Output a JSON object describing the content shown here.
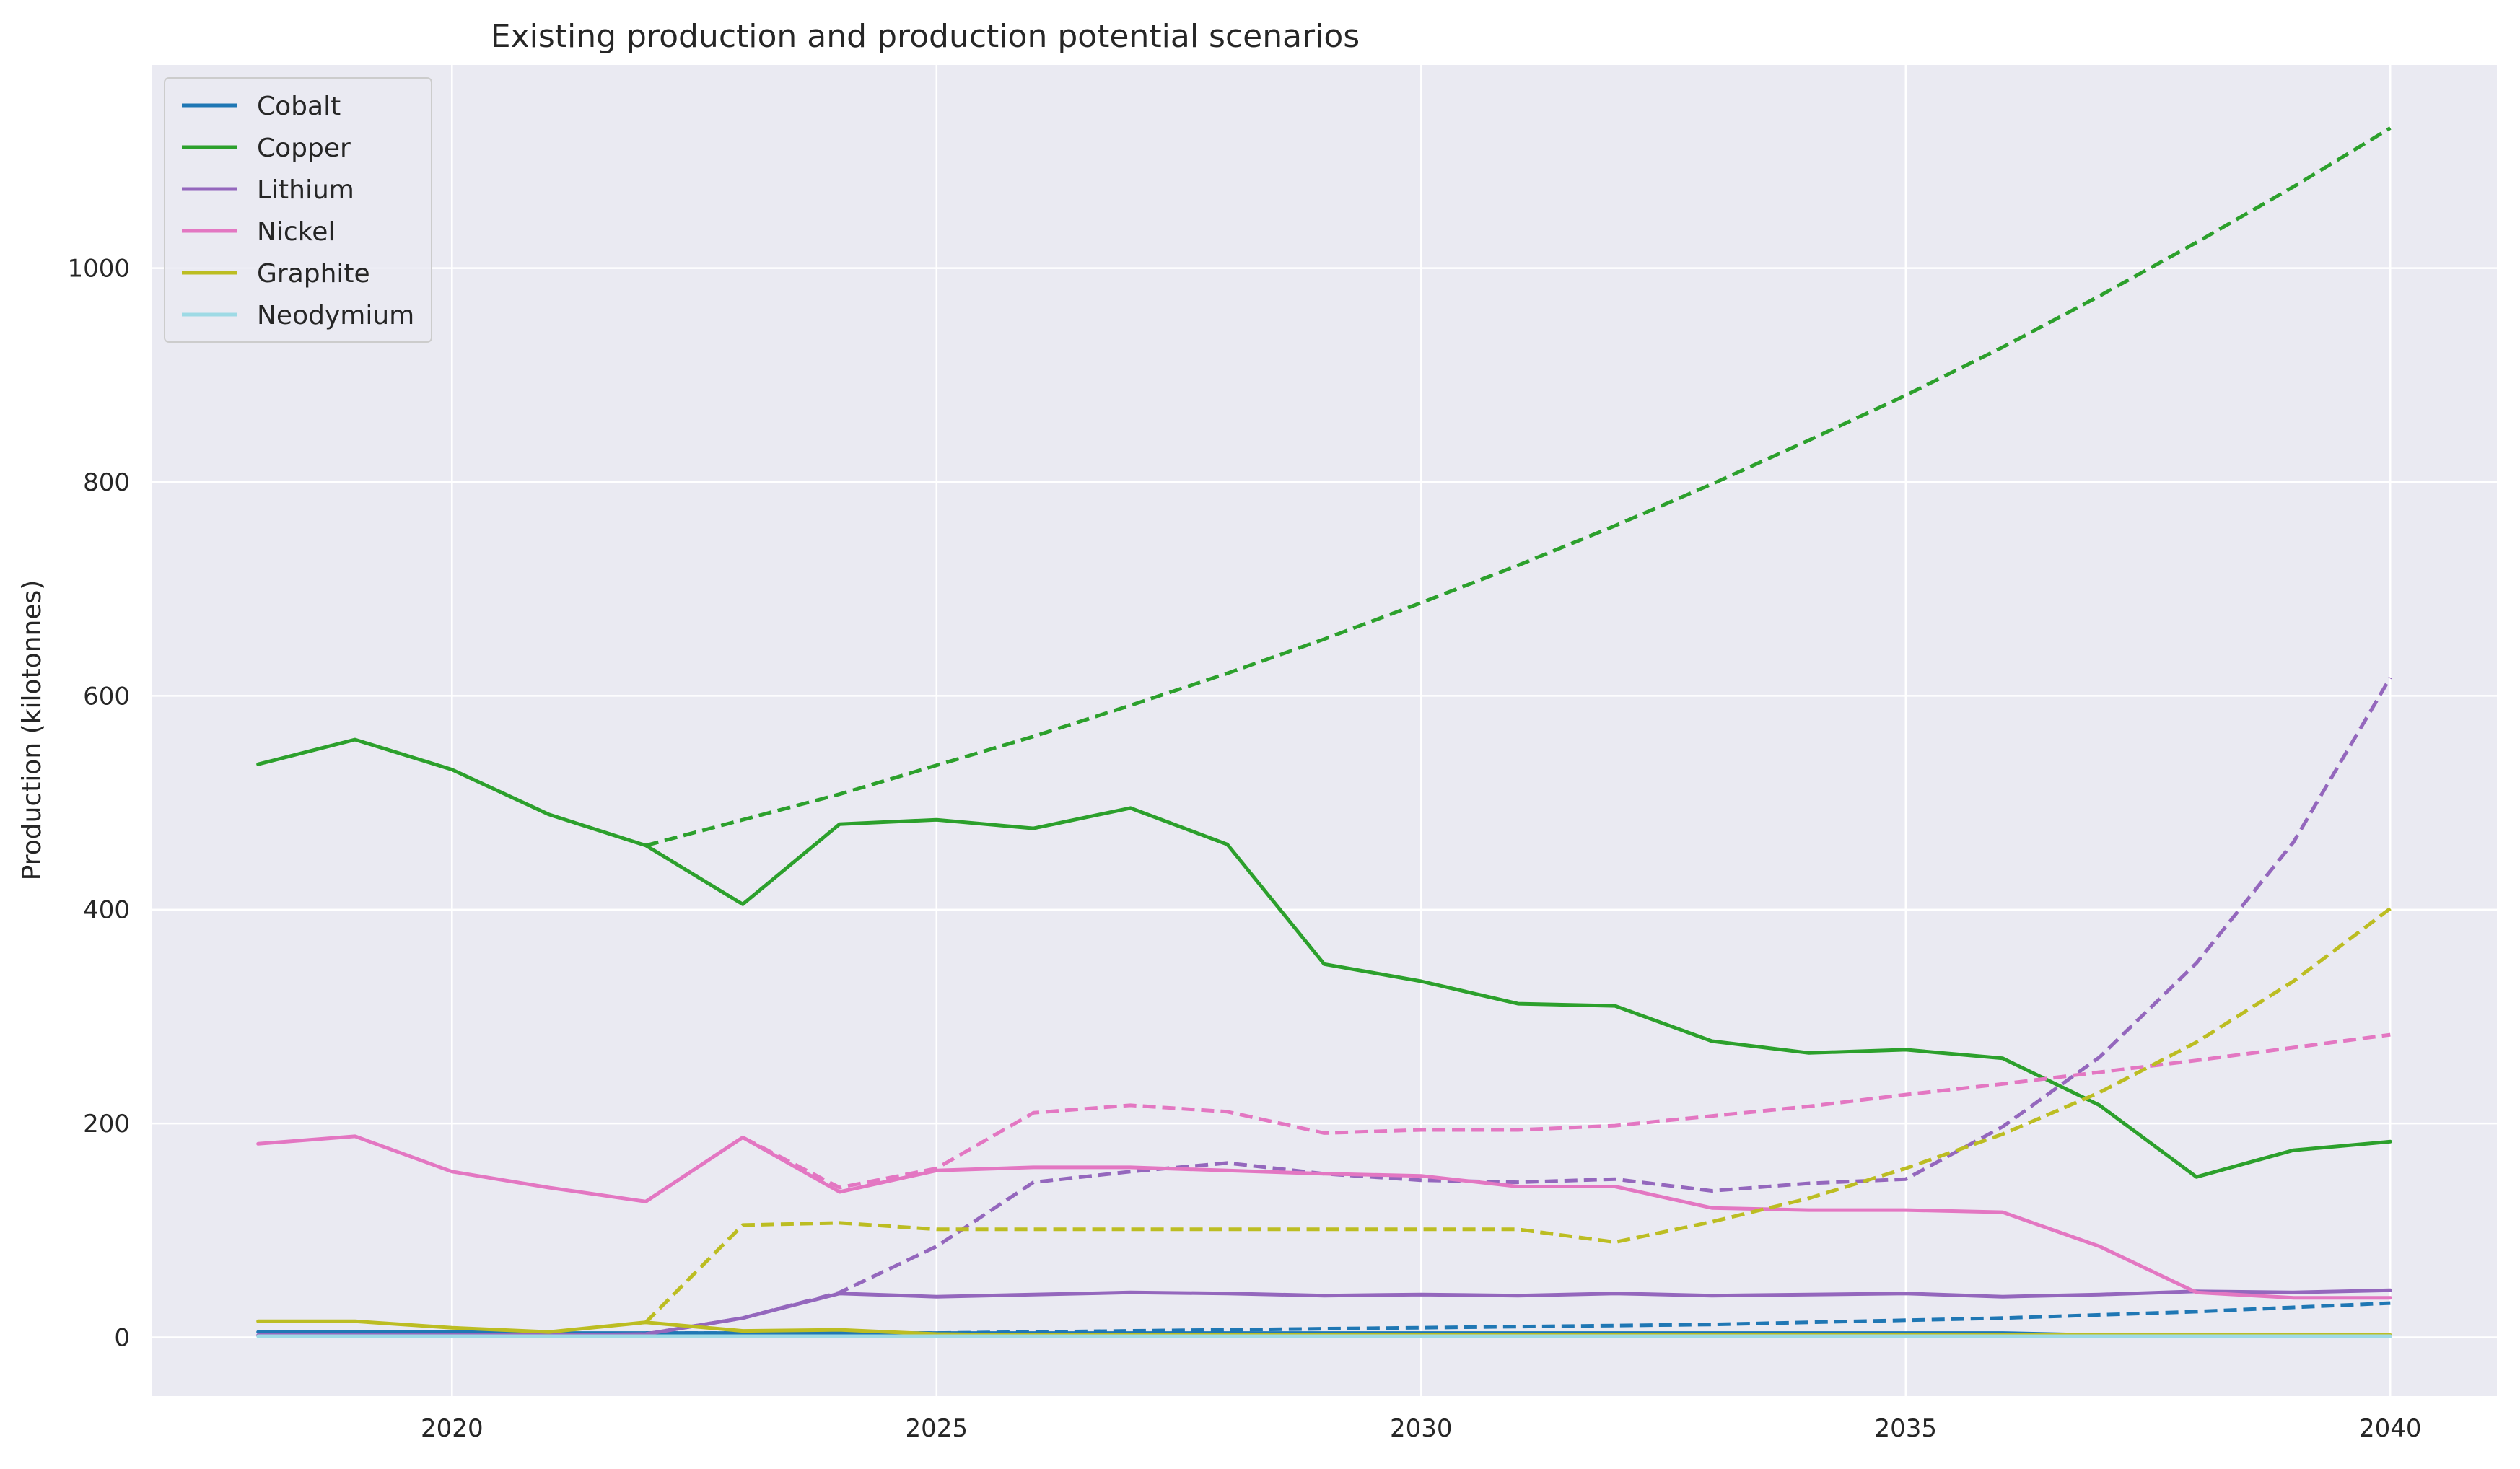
{
  "chart_data": {
    "type": "line",
    "title": "Existing production and production potential scenarios",
    "xlabel": "",
    "ylabel": "Production (kilotonnes)",
    "xlim": [
      2016.9,
      2041.1
    ],
    "ylim": [
      -55,
      1190
    ],
    "xticks": [
      2020,
      2025,
      2030,
      2035,
      2040
    ],
    "yticks": [
      0,
      200,
      400,
      600,
      800,
      1000
    ],
    "grid": true,
    "legend_position": "top-left",
    "line_styles": {
      "solid": "existing production",
      "dashed": "production potential"
    },
    "series": [
      {
        "name": "Cobalt",
        "color": "#1f77b4",
        "existing": {
          "x": [
            2018,
            2019,
            2020,
            2021,
            2022,
            2023,
            2024,
            2025,
            2026,
            2027,
            2028,
            2029,
            2030,
            2031,
            2032,
            2033,
            2034,
            2035,
            2036,
            2037,
            2038,
            2039,
            2040
          ],
          "y": [
            5,
            5,
            5,
            4,
            4,
            4,
            4,
            4,
            4,
            4,
            4,
            4,
            4,
            4,
            4,
            4,
            4,
            4,
            4,
            2,
            1,
            1,
            1
          ]
        },
        "potential": {
          "x": [
            2022,
            2023,
            2024,
            2025,
            2026,
            2027,
            2028,
            2029,
            2030,
            2031,
            2032,
            2033,
            2034,
            2035,
            2036,
            2037,
            2038,
            2039,
            2040
          ],
          "y": [
            4,
            4,
            4,
            4,
            5,
            6,
            7,
            8,
            9,
            10,
            11,
            12,
            14,
            16,
            18,
            21,
            24,
            28,
            32
          ]
        }
      },
      {
        "name": "Copper",
        "color": "#2ca02c",
        "existing": {
          "x": [
            2018,
            2019,
            2020,
            2021,
            2022,
            2023,
            2024,
            2025,
            2026,
            2027,
            2028,
            2029,
            2030,
            2031,
            2032,
            2033,
            2034,
            2035,
            2036,
            2037,
            2038,
            2039,
            2040
          ],
          "y": [
            536,
            559,
            531,
            489,
            460,
            405,
            480,
            484,
            476,
            495,
            461,
            349,
            333,
            312,
            310,
            277,
            266,
            269,
            261,
            217,
            150,
            175,
            183
          ]
        },
        "potential": {
          "x": [
            2022,
            2023,
            2024,
            2025,
            2026,
            2027,
            2028,
            2029,
            2030,
            2031,
            2032,
            2033,
            2034,
            2035,
            2036,
            2037,
            2038,
            2039,
            2040
          ],
          "y": [
            460,
            484,
            508,
            535,
            562,
            591,
            621,
            653,
            687,
            722,
            759,
            798,
            839,
            881,
            926,
            974,
            1024,
            1076,
            1131
          ]
        }
      },
      {
        "name": "Lithium",
        "color": "#9467bd",
        "existing": {
          "x": [
            2018,
            2019,
            2020,
            2021,
            2022,
            2023,
            2024,
            2025,
            2026,
            2027,
            2028,
            2029,
            2030,
            2031,
            2032,
            2033,
            2034,
            2035,
            2036,
            2037,
            2038,
            2039,
            2040
          ],
          "y": [
            2,
            2,
            2,
            2,
            3,
            18,
            41,
            38,
            40,
            42,
            41,
            39,
            40,
            39,
            41,
            39,
            40,
            41,
            38,
            40,
            43,
            42,
            44
          ]
        },
        "potential": {
          "x": [
            2022,
            2023,
            2024,
            2025,
            2026,
            2027,
            2028,
            2029,
            2030,
            2031,
            2032,
            2033,
            2034,
            2035,
            2036,
            2037,
            2038,
            2039,
            2040
          ],
          "y": [
            3,
            18,
            42,
            85,
            145,
            155,
            163,
            153,
            147,
            145,
            148,
            137,
            144,
            148,
            197,
            262,
            350,
            463,
            617
          ]
        }
      },
      {
        "name": "Nickel",
        "color": "#e377c2",
        "existing": {
          "x": [
            2018,
            2019,
            2020,
            2021,
            2022,
            2023,
            2024,
            2025,
            2026,
            2027,
            2028,
            2029,
            2030,
            2031,
            2032,
            2033,
            2034,
            2035,
            2036,
            2037,
            2038,
            2039,
            2040
          ],
          "y": [
            181,
            188,
            155,
            140,
            127,
            187,
            136,
            156,
            159,
            159,
            156,
            153,
            151,
            141,
            141,
            121,
            119,
            119,
            117,
            85,
            42,
            37,
            37
          ]
        },
        "potential": {
          "x": [
            2022,
            2023,
            2024,
            2025,
            2026,
            2027,
            2028,
            2029,
            2030,
            2031,
            2032,
            2033,
            2034,
            2035,
            2036,
            2037,
            2038,
            2039,
            2040
          ],
          "y": [
            127,
            187,
            140,
            158,
            210,
            217,
            211,
            191,
            194,
            194,
            198,
            207,
            216,
            227,
            237,
            248,
            259,
            271,
            283
          ]
        }
      },
      {
        "name": "Graphite",
        "color": "#bcbd22",
        "existing": {
          "x": [
            2018,
            2019,
            2020,
            2021,
            2022,
            2023,
            2024,
            2025,
            2026,
            2027,
            2028,
            2029,
            2030,
            2031,
            2032,
            2033,
            2034,
            2035,
            2036,
            2037,
            2038,
            2039,
            2040
          ],
          "y": [
            15,
            15,
            9,
            5,
            14,
            6,
            7,
            3,
            2,
            2,
            2,
            2,
            2,
            2,
            2,
            2,
            2,
            2,
            2,
            2,
            2,
            2,
            2
          ]
        },
        "potential": {
          "x": [
            2022,
            2023,
            2024,
            2025,
            2026,
            2027,
            2028,
            2029,
            2030,
            2031,
            2032,
            2033,
            2034,
            2035,
            2036,
            2037,
            2038,
            2039,
            2040
          ],
          "y": [
            14,
            105,
            107,
            101,
            101,
            101,
            101,
            101,
            101,
            101,
            89,
            108,
            130,
            158,
            190,
            229,
            276,
            333,
            401
          ]
        }
      },
      {
        "name": "Neodymium",
        "color": "#9edae5",
        "existing": {
          "x": [
            2018,
            2019,
            2020,
            2021,
            2022,
            2023,
            2024,
            2025,
            2026,
            2027,
            2028,
            2029,
            2030,
            2031,
            2032,
            2033,
            2034,
            2035,
            2036,
            2037,
            2038,
            2039,
            2040
          ],
          "y": [
            1,
            1,
            1,
            1,
            1,
            1,
            1,
            1,
            1,
            1,
            1,
            1,
            1,
            1,
            1,
            1,
            1,
            1,
            1,
            1,
            1,
            1,
            1
          ]
        },
        "potential": {
          "x": [
            2022,
            2023,
            2024,
            2025,
            2026,
            2027,
            2028,
            2029,
            2030,
            2031,
            2032,
            2033,
            2034,
            2035,
            2036,
            2037,
            2038,
            2039,
            2040
          ],
          "y": [
            1,
            1,
            1,
            1,
            1,
            1,
            1,
            1,
            1,
            1,
            1,
            1,
            1,
            1,
            1,
            1,
            1,
            1,
            1
          ]
        }
      }
    ]
  }
}
